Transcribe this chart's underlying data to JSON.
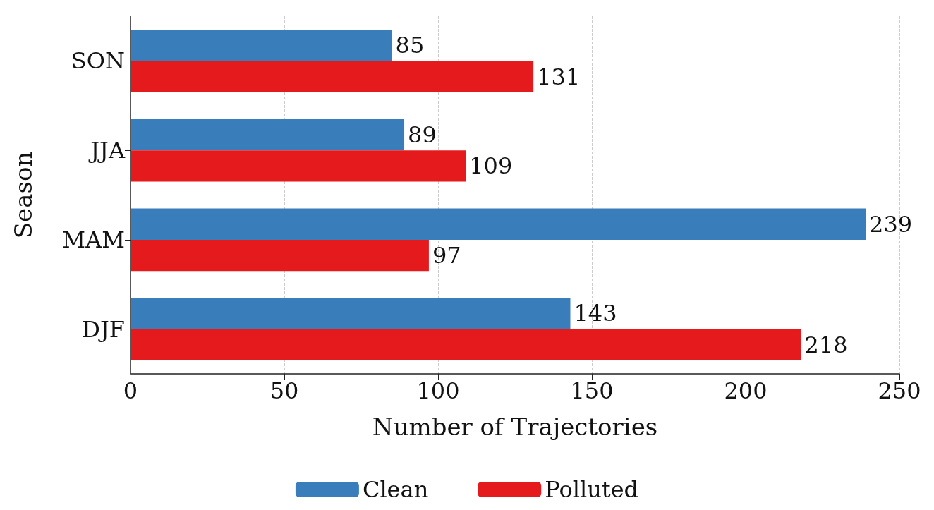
{
  "chart_data": {
    "type": "bar",
    "orientation": "horizontal",
    "xlabel": "Number of Trajectories",
    "ylabel": "Season",
    "categories": [
      "SON",
      "JJA",
      "MAM",
      "DJF"
    ],
    "series": [
      {
        "name": "Clean",
        "color": "#3a7dbb",
        "values": [
          85,
          89,
          239,
          143
        ]
      },
      {
        "name": "Polluted",
        "color": "#e41a1c",
        "values": [
          131,
          109,
          97,
          218
        ]
      }
    ],
    "xlim": [
      0,
      250
    ],
    "xticks": [
      0,
      50,
      100,
      150,
      200,
      250
    ],
    "grid": "x",
    "legend": "bottom",
    "data_labels": true
  }
}
